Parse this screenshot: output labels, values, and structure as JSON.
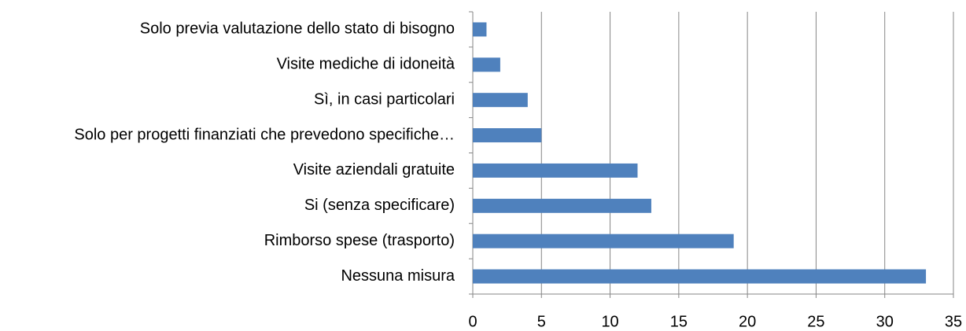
{
  "chart_data": {
    "type": "bar",
    "orientation": "horizontal",
    "categories": [
      "Solo previa valutazione dello stato di bisogno",
      "Visite mediche di idoneità",
      "Sì, in casi particolari",
      "Solo per progetti finanziati che prevedono specifiche…",
      "Visite aziendali gratuite",
      "Si (senza specificare)",
      "Rimborso spese (trasporto)",
      "Nessuna misura"
    ],
    "values": [
      1,
      2,
      4,
      5,
      12,
      13,
      19,
      33
    ],
    "color": "#4f81bd",
    "xlim": [
      0,
      35
    ],
    "xticks": [
      0,
      5,
      10,
      15,
      20,
      25,
      30,
      35
    ],
    "grid": true
  }
}
